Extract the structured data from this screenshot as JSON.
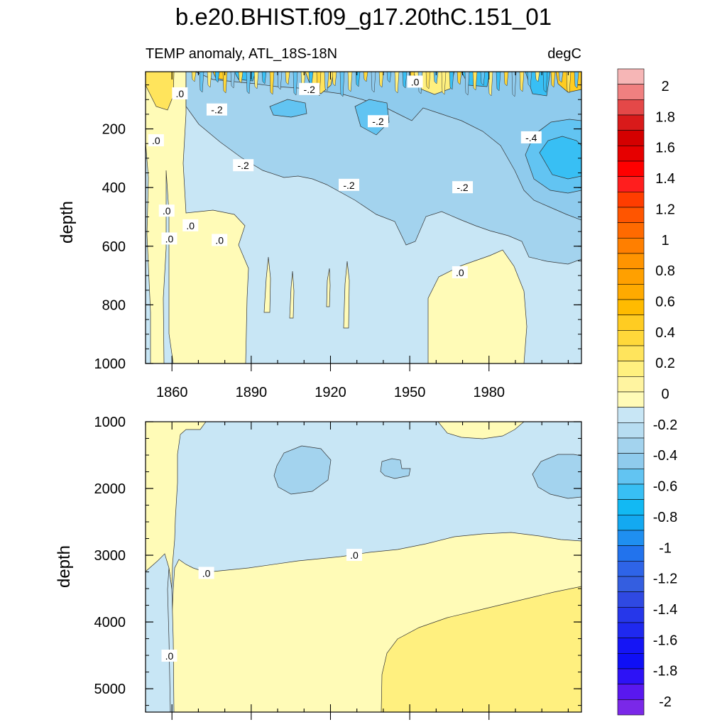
{
  "chart_data": {
    "type": "contour",
    "title": "b.e20.BHIST.f09_g17.20thC.151_01",
    "subtitle_left": "TEMP anomaly, ATL_18S-18N",
    "subtitle_right": "degC",
    "x": {
      "range": [
        1850,
        2015
      ],
      "ticks": [
        1860,
        1890,
        1920,
        1950,
        1980
      ],
      "tick_labels": [
        "1860",
        "1890",
        "1920",
        "1950",
        "1980"
      ]
    },
    "panels": [
      {
        "name": "upper",
        "ylabel": "depth",
        "ylim": [
          1000,
          5
        ],
        "y_ticks": [
          200,
          400,
          600,
          800,
          1000
        ],
        "y_tick_labels": [
          "200",
          "400",
          "600",
          "800",
          "1000"
        ],
        "contour_labels": [
          {
            "x": 1863,
            "y": 80,
            "text": ".0"
          },
          {
            "x": 1854,
            "y": 240,
            "text": ".0"
          },
          {
            "x": 1858,
            "y": 480,
            "text": ".0"
          },
          {
            "x": 1859,
            "y": 575,
            "text": ".0"
          },
          {
            "x": 1867,
            "y": 530,
            "text": ".0"
          },
          {
            "x": 1878,
            "y": 580,
            "text": ".0"
          },
          {
            "x": 1877,
            "y": 135,
            "text": "-.2"
          },
          {
            "x": 1912,
            "y": 65,
            "text": "-.2"
          },
          {
            "x": 1887,
            "y": 325,
            "text": "-.2"
          },
          {
            "x": 1927,
            "y": 392,
            "text": "-.2"
          },
          {
            "x": 1938,
            "y": 175,
            "text": "-.2"
          },
          {
            "x": 1952,
            "y": 40,
            "text": ".0"
          },
          {
            "x": 1970,
            "y": 400,
            "text": "-.2"
          },
          {
            "x": 1969,
            "y": 690,
            "text": ".0"
          },
          {
            "x": 1996,
            "y": 230,
            "text": "-.4"
          }
        ]
      },
      {
        "name": "lower",
        "ylabel": "depth",
        "ylim": [
          5350,
          1000
        ],
        "y_ticks": [
          1000,
          2000,
          3000,
          4000,
          5000
        ],
        "y_tick_labels": [
          "1000",
          "2000",
          "3000",
          "4000",
          "5000"
        ],
        "contour_labels": [
          {
            "x": 1873,
            "y": 3270,
            "text": ".0"
          },
          {
            "x": 1929,
            "y": 3000,
            "text": ".0"
          },
          {
            "x": 1859,
            "y": 4510,
            "text": ".0"
          }
        ]
      }
    ],
    "colorbar": {
      "levels": [
        -2,
        -1.8,
        -1.6,
        -1.4,
        -1.2,
        -1,
        -0.8,
        -0.6,
        -0.4,
        -0.2,
        0,
        0.2,
        0.4,
        0.6,
        0.8,
        1,
        1.2,
        1.4,
        1.6,
        1.8,
        2
      ],
      "tick_labels": [
        "-2",
        "-1.8",
        "-1.6",
        "-1.4",
        "-1.2",
        "-1",
        "-0.8",
        "-0.6",
        "-0.4",
        "-0.2",
        "0",
        "0.2",
        "0.4",
        "0.6",
        "0.8",
        "1",
        "1.2",
        "1.4",
        "1.6",
        "1.8",
        "2"
      ],
      "colors_top_to_bottom": [
        "#f6b6b6",
        "#f08080",
        "#e44848",
        "#d91a1a",
        "#d40000",
        "#e60000",
        "#ff0000",
        "#ff1e1e",
        "#ff3d00",
        "#ff5500",
        "#ff6a00",
        "#ff7f00",
        "#ff9400",
        "#ffa000",
        "#ffaa00",
        "#ffbb00",
        "#ffcc22",
        "#ffd83a",
        "#ffe45c",
        "#fff07f",
        "#fff4a0",
        "#fffbb7",
        "#c8e6f5",
        "#b7ddf1",
        "#a3d3ee",
        "#8fcbed",
        "#62c4f2",
        "#38bff4",
        "#12b9f3",
        "#13a9f1",
        "#1f8ff0",
        "#2273ed",
        "#2e64e8",
        "#345ee0",
        "#2f49e2",
        "#2637ea",
        "#1f29ef",
        "#1515f5",
        "#0f0ff6",
        "#2d12f6",
        "#5918ef",
        "#7a28e8"
      ]
    }
  }
}
